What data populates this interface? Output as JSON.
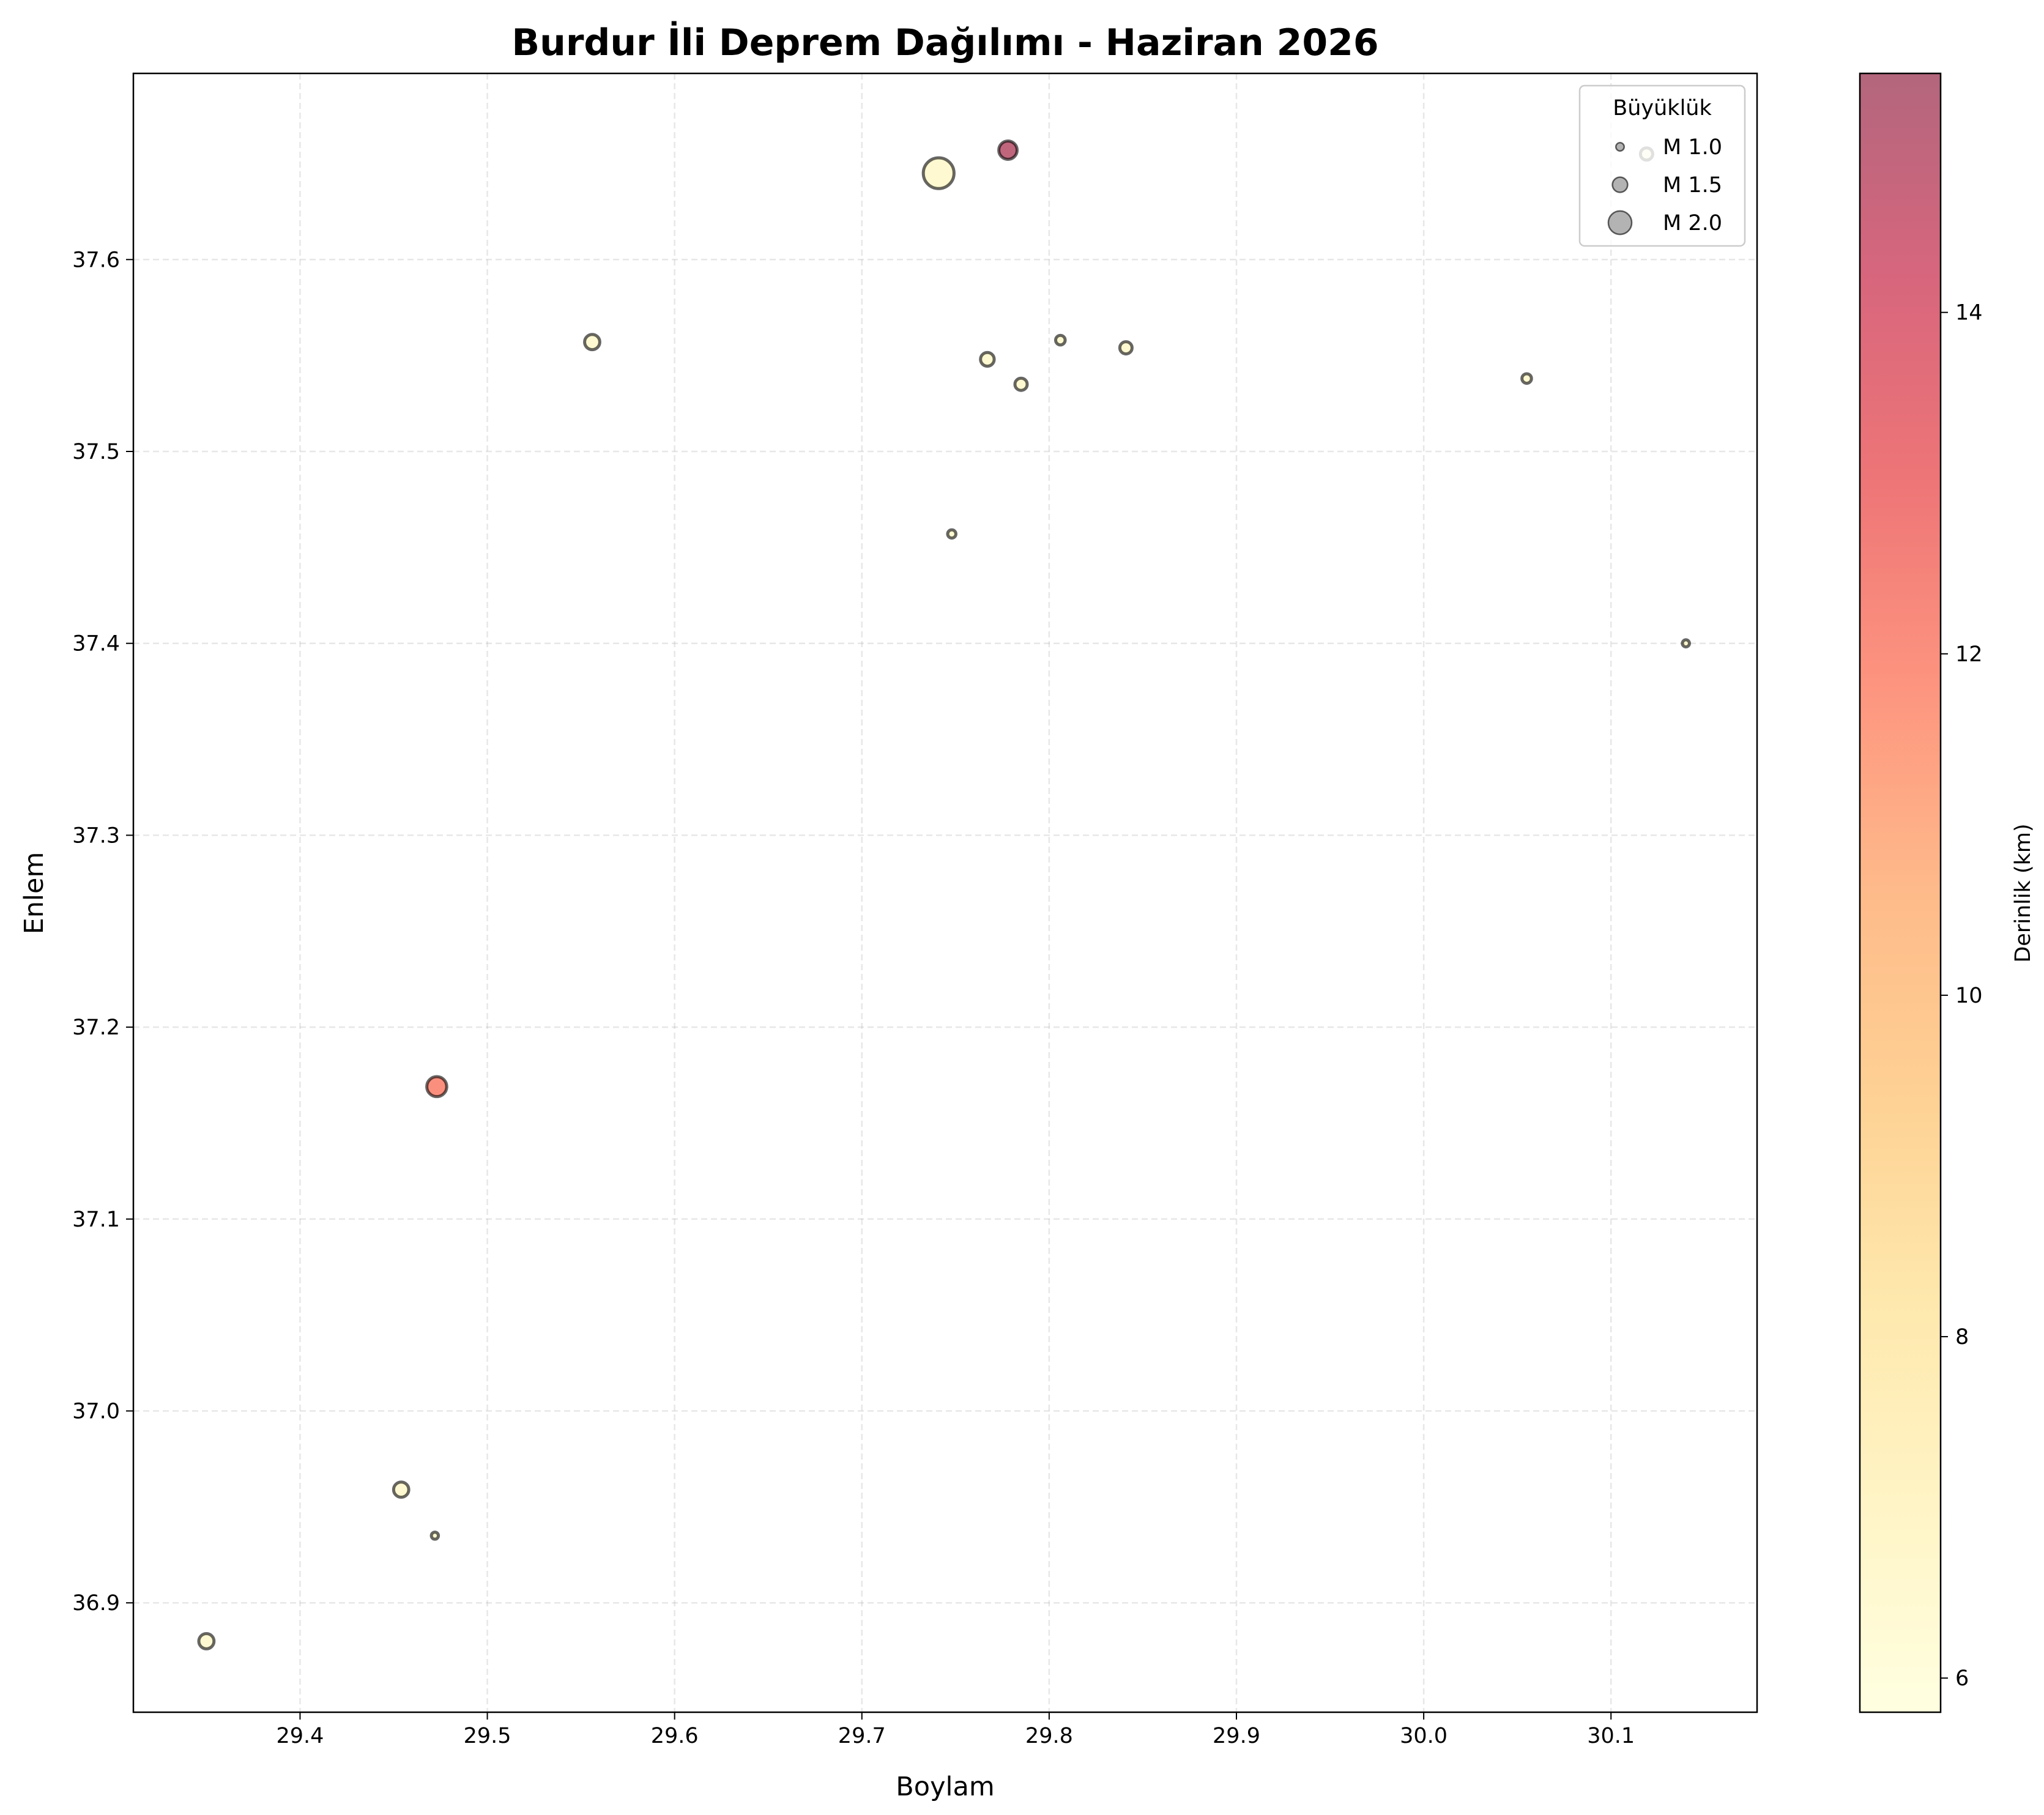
{
  "chart_data": {
    "type": "scatter",
    "title": "Burdur İli Deprem Dağılımı - Haziran 2026",
    "xlabel": "Boylam",
    "ylabel": "Enlem",
    "xlim": [
      29.311,
      30.178
    ],
    "ylim": [
      36.843,
      37.697
    ],
    "xticks": [
      "29.4",
      "29.5",
      "29.6",
      "29.7",
      "29.8",
      "29.9",
      "30.0",
      "30.1"
    ],
    "yticks": [
      "36.9",
      "37.0",
      "37.1",
      "37.2",
      "37.3",
      "37.4",
      "37.5",
      "37.6"
    ],
    "grid": true,
    "colorbar": {
      "label": "Derinlik (km)",
      "range": [
        5.8,
        15.4
      ],
      "ticks": [
        "6",
        "8",
        "10",
        "12",
        "14"
      ],
      "colormap": [
        "#ffffcc",
        "#ffeda0",
        "#fed976",
        "#feb24c",
        "#fd8d3c",
        "#fc4e2a",
        "#e31a1c",
        "#bd0026",
        "#800026"
      ]
    },
    "legend": {
      "title": "Büyüklük",
      "position": "top-right",
      "entries": [
        {
          "label": "M 1.0",
          "magnitude": 1.0
        },
        {
          "label": "M 1.5",
          "magnitude": 1.5
        },
        {
          "label": "M 2.0",
          "magnitude": 2.0
        }
      ]
    },
    "points": [
      {
        "lon": 29.741,
        "lat": 37.645,
        "mag": 2.4,
        "depth": 6.5
      },
      {
        "lon": 29.778,
        "lat": 37.657,
        "mag": 1.7,
        "depth": 15.0
      },
      {
        "lon": 30.119,
        "lat": 37.655,
        "mag": 1.3,
        "depth": 6.5
      },
      {
        "lon": 29.556,
        "lat": 37.557,
        "mag": 1.5,
        "depth": 6.5
      },
      {
        "lon": 29.767,
        "lat": 37.548,
        "mag": 1.4,
        "depth": 6.5
      },
      {
        "lon": 29.806,
        "lat": 37.558,
        "mag": 1.1,
        "depth": 6.5
      },
      {
        "lon": 29.841,
        "lat": 37.554,
        "mag": 1.3,
        "depth": 6.5
      },
      {
        "lon": 29.785,
        "lat": 37.535,
        "mag": 1.3,
        "depth": 6.5
      },
      {
        "lon": 30.055,
        "lat": 37.538,
        "mag": 1.1,
        "depth": 6.5
      },
      {
        "lon": 29.748,
        "lat": 37.457,
        "mag": 1.0,
        "depth": 6.5
      },
      {
        "lon": 30.14,
        "lat": 37.4,
        "mag": 0.9,
        "depth": 6.5
      },
      {
        "lon": 29.473,
        "lat": 37.169,
        "mag": 1.8,
        "depth": 12.0
      },
      {
        "lon": 29.454,
        "lat": 36.959,
        "mag": 1.5,
        "depth": 6.5
      },
      {
        "lon": 29.472,
        "lat": 36.935,
        "mag": 0.9,
        "depth": 6.5
      },
      {
        "lon": 29.35,
        "lat": 36.88,
        "mag": 1.5,
        "depth": 6.5
      }
    ]
  }
}
